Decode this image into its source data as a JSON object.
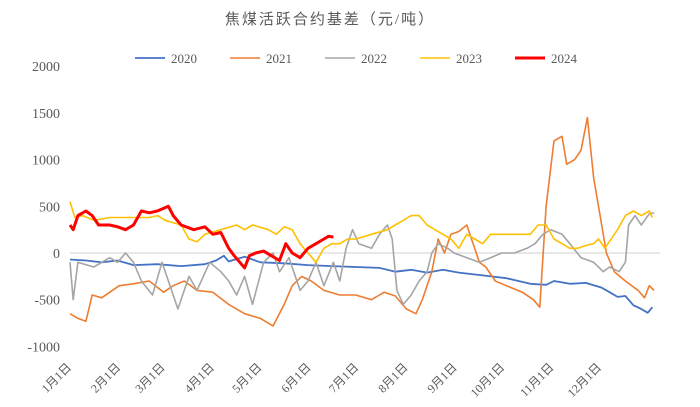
{
  "chart_data": {
    "type": "line",
    "title": "焦煤活跃合约基差（元/吨）",
    "xlabel": "",
    "ylabel": "",
    "ylim": [
      -1000,
      2000
    ],
    "yticks": [
      "2000",
      "1500",
      "1000",
      "500",
      "0",
      "-500",
      "-1000"
    ],
    "ytick_values": [
      2000,
      1500,
      1000,
      500,
      0,
      -500,
      -1000
    ],
    "xticks": [
      "1月1日",
      "2月1日",
      "3月1日",
      "4月1日",
      "5月1日",
      "6月1日",
      "7月1日",
      "8月1日",
      "9月1日",
      "10月1日",
      "11月1日",
      "12月1日"
    ],
    "xtick_days": [
      0,
      31,
      59,
      90,
      120,
      151,
      181,
      212,
      243,
      273,
      304,
      334
    ],
    "x_unit": "day of year",
    "grid": false,
    "legend_position": "top",
    "series": [
      {
        "name": "2020",
        "color": "#4472C4",
        "width": 1.8,
        "points": [
          [
            0,
            -70
          ],
          [
            10,
            -80
          ],
          [
            20,
            -100
          ],
          [
            30,
            -80
          ],
          [
            40,
            -130
          ],
          [
            55,
            -120
          ],
          [
            70,
            -140
          ],
          [
            85,
            -120
          ],
          [
            92,
            -80
          ],
          [
            97,
            -30
          ],
          [
            100,
            -90
          ],
          [
            110,
            -40
          ],
          [
            120,
            -100
          ],
          [
            135,
            -110
          ],
          [
            150,
            -130
          ],
          [
            165,
            -140
          ],
          [
            180,
            -150
          ],
          [
            195,
            -160
          ],
          [
            205,
            -200
          ],
          [
            215,
            -180
          ],
          [
            225,
            -210
          ],
          [
            235,
            -180
          ],
          [
            245,
            -210
          ],
          [
            260,
            -240
          ],
          [
            275,
            -270
          ],
          [
            290,
            -330
          ],
          [
            300,
            -340
          ],
          [
            305,
            -300
          ],
          [
            315,
            -330
          ],
          [
            325,
            -320
          ],
          [
            335,
            -370
          ],
          [
            340,
            -420
          ],
          [
            345,
            -470
          ],
          [
            350,
            -460
          ],
          [
            355,
            -560
          ],
          [
            360,
            -600
          ],
          [
            364,
            -640
          ],
          [
            367,
            -580
          ]
        ]
      },
      {
        "name": "2021",
        "color": "#ED7D31",
        "width": 1.6,
        "points": [
          [
            0,
            -650
          ],
          [
            5,
            -700
          ],
          [
            10,
            -730
          ],
          [
            14,
            -450
          ],
          [
            20,
            -480
          ],
          [
            31,
            -350
          ],
          [
            40,
            -330
          ],
          [
            50,
            -300
          ],
          [
            59,
            -420
          ],
          [
            65,
            -350
          ],
          [
            72,
            -300
          ],
          [
            80,
            -400
          ],
          [
            90,
            -420
          ],
          [
            100,
            -550
          ],
          [
            110,
            -650
          ],
          [
            120,
            -700
          ],
          [
            128,
            -780
          ],
          [
            135,
            -550
          ],
          [
            140,
            -350
          ],
          [
            146,
            -250
          ],
          [
            152,
            -300
          ],
          [
            160,
            -400
          ],
          [
            170,
            -450
          ],
          [
            180,
            -450
          ],
          [
            190,
            -500
          ],
          [
            198,
            -420
          ],
          [
            205,
            -460
          ],
          [
            212,
            -600
          ],
          [
            218,
            -650
          ],
          [
            222,
            -500
          ],
          [
            228,
            -200
          ],
          [
            232,
            150
          ],
          [
            236,
            0
          ],
          [
            240,
            200
          ],
          [
            245,
            230
          ],
          [
            250,
            300
          ],
          [
            254,
            100
          ],
          [
            258,
            -100
          ],
          [
            262,
            -150
          ],
          [
            268,
            -300
          ],
          [
            275,
            -350
          ],
          [
            285,
            -420
          ],
          [
            292,
            -500
          ],
          [
            296,
            -580
          ],
          [
            300,
            500
          ],
          [
            305,
            1200
          ],
          [
            310,
            1250
          ],
          [
            313,
            950
          ],
          [
            318,
            1000
          ],
          [
            322,
            1100
          ],
          [
            326,
            1450
          ],
          [
            330,
            800
          ],
          [
            334,
            400
          ],
          [
            338,
            0
          ],
          [
            343,
            -200
          ],
          [
            350,
            -300
          ],
          [
            358,
            -400
          ],
          [
            362,
            -480
          ],
          [
            365,
            -350
          ],
          [
            368,
            -400
          ]
        ]
      },
      {
        "name": "2022",
        "color": "#A5A5A5",
        "width": 1.6,
        "points": [
          [
            0,
            -100
          ],
          [
            2,
            -500
          ],
          [
            5,
            -100
          ],
          [
            15,
            -150
          ],
          [
            25,
            -50
          ],
          [
            30,
            -100
          ],
          [
            35,
            0
          ],
          [
            40,
            -100
          ],
          [
            45,
            -300
          ],
          [
            52,
            -450
          ],
          [
            58,
            -100
          ],
          [
            62,
            -300
          ],
          [
            68,
            -600
          ],
          [
            75,
            -250
          ],
          [
            80,
            -400
          ],
          [
            88,
            -100
          ],
          [
            95,
            -200
          ],
          [
            100,
            -300
          ],
          [
            105,
            -450
          ],
          [
            110,
            -250
          ],
          [
            115,
            -550
          ],
          [
            122,
            -100
          ],
          [
            128,
            0
          ],
          [
            132,
            -200
          ],
          [
            138,
            -50
          ],
          [
            145,
            -400
          ],
          [
            150,
            -300
          ],
          [
            155,
            -100
          ],
          [
            160,
            -350
          ],
          [
            166,
            -100
          ],
          [
            170,
            -300
          ],
          [
            174,
            50
          ],
          [
            178,
            250
          ],
          [
            182,
            100
          ],
          [
            190,
            50
          ],
          [
            195,
            200
          ],
          [
            200,
            300
          ],
          [
            203,
            150
          ],
          [
            206,
            -400
          ],
          [
            210,
            -550
          ],
          [
            215,
            -450
          ],
          [
            220,
            -300
          ],
          [
            225,
            -200
          ],
          [
            228,
            0
          ],
          [
            232,
            100
          ],
          [
            238,
            50
          ],
          [
            242,
            0
          ],
          [
            250,
            -50
          ],
          [
            258,
            -100
          ],
          [
            265,
            -50
          ],
          [
            272,
            0
          ],
          [
            280,
            0
          ],
          [
            288,
            50
          ],
          [
            293,
            100
          ],
          [
            298,
            200
          ],
          [
            303,
            250
          ],
          [
            310,
            200
          ],
          [
            315,
            100
          ],
          [
            322,
            -50
          ],
          [
            330,
            -100
          ],
          [
            336,
            -200
          ],
          [
            340,
            -150
          ],
          [
            346,
            -200
          ],
          [
            350,
            -100
          ],
          [
            352,
            300
          ],
          [
            356,
            400
          ],
          [
            360,
            300
          ],
          [
            365,
            420
          ],
          [
            368,
            430
          ]
        ]
      },
      {
        "name": "2023",
        "color": "#FFC000",
        "width": 1.6,
        "points": [
          [
            0,
            550
          ],
          [
            3,
            380
          ],
          [
            8,
            400
          ],
          [
            15,
            350
          ],
          [
            25,
            380
          ],
          [
            40,
            380
          ],
          [
            50,
            380
          ],
          [
            55,
            400
          ],
          [
            60,
            350
          ],
          [
            70,
            300
          ],
          [
            75,
            150
          ],
          [
            80,
            120
          ],
          [
            85,
            200
          ],
          [
            95,
            250
          ],
          [
            105,
            300
          ],
          [
            110,
            250
          ],
          [
            115,
            300
          ],
          [
            125,
            250
          ],
          [
            130,
            200
          ],
          [
            135,
            280
          ],
          [
            140,
            250
          ],
          [
            145,
            100
          ],
          [
            150,
            0
          ],
          [
            155,
            -100
          ],
          [
            160,
            50
          ],
          [
            165,
            100
          ],
          [
            170,
            100
          ],
          [
            175,
            150
          ],
          [
            180,
            150
          ],
          [
            190,
            200
          ],
          [
            200,
            250
          ],
          [
            205,
            300
          ],
          [
            210,
            350
          ],
          [
            215,
            400
          ],
          [
            220,
            400
          ],
          [
            225,
            300
          ],
          [
            230,
            250
          ],
          [
            235,
            200
          ],
          [
            240,
            150
          ],
          [
            245,
            50
          ],
          [
            250,
            200
          ],
          [
            255,
            150
          ],
          [
            260,
            100
          ],
          [
            265,
            200
          ],
          [
            275,
            200
          ],
          [
            290,
            200
          ],
          [
            295,
            300
          ],
          [
            300,
            300
          ],
          [
            305,
            150
          ],
          [
            310,
            100
          ],
          [
            315,
            50
          ],
          [
            320,
            50
          ],
          [
            325,
            80
          ],
          [
            330,
            100
          ],
          [
            333,
            150
          ],
          [
            337,
            50
          ],
          [
            345,
            250
          ],
          [
            350,
            400
          ],
          [
            355,
            450
          ],
          [
            360,
            400
          ],
          [
            365,
            450
          ],
          [
            367,
            380
          ]
        ]
      },
      {
        "name": "2024",
        "color": "#FF0000",
        "width": 3,
        "points": [
          [
            0,
            300
          ],
          [
            2,
            250
          ],
          [
            5,
            400
          ],
          [
            10,
            450
          ],
          [
            14,
            400
          ],
          [
            18,
            300
          ],
          [
            25,
            300
          ],
          [
            30,
            280
          ],
          [
            35,
            250
          ],
          [
            40,
            300
          ],
          [
            45,
            450
          ],
          [
            50,
            430
          ],
          [
            55,
            450
          ],
          [
            62,
            500
          ],
          [
            65,
            400
          ],
          [
            70,
            300
          ],
          [
            78,
            250
          ],
          [
            85,
            280
          ],
          [
            90,
            200
          ],
          [
            95,
            220
          ],
          [
            100,
            50
          ],
          [
            103,
            -20
          ],
          [
            107,
            -100
          ],
          [
            110,
            -160
          ],
          [
            113,
            -30
          ],
          [
            117,
            0
          ],
          [
            122,
            20
          ],
          [
            127,
            -30
          ],
          [
            132,
            -80
          ],
          [
            136,
            100
          ],
          [
            140,
            0
          ],
          [
            145,
            -50
          ],
          [
            150,
            50
          ],
          [
            155,
            100
          ],
          [
            160,
            150
          ],
          [
            163,
            180
          ],
          [
            166,
            170
          ]
        ]
      }
    ]
  }
}
